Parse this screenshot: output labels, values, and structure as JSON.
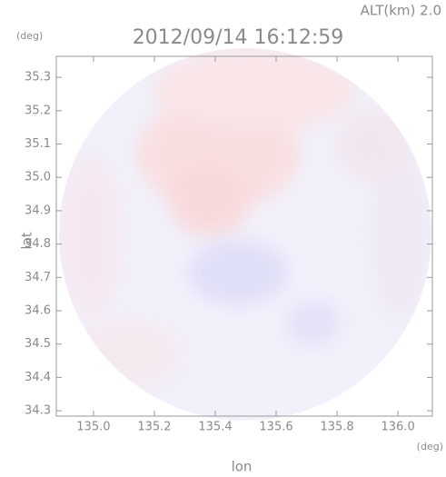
{
  "chart_data": {
    "type": "radar-map",
    "altitude_label": "ALT(km) 2.0",
    "title": "2012/09/14 16:12:59",
    "y_unit": "(deg)",
    "x_unit": "(deg)",
    "xlabel": "lon",
    "ylabel": "lat",
    "xlim": [
      134.878,
      136.113
    ],
    "ylim": [
      34.284,
      35.363
    ],
    "xticks": [
      {
        "value": 135.0,
        "label": "135.0"
      },
      135.2,
      135.4,
      135.6,
      135.8,
      {
        "value": 136.0,
        "label": "136.0"
      }
    ],
    "yticks": [
      35.3,
      35.2,
      35.1,
      {
        "value": 35.0,
        "label": "35.0"
      },
      34.9,
      34.8,
      34.7,
      34.6,
      34.5,
      34.4,
      34.3
    ]
  }
}
